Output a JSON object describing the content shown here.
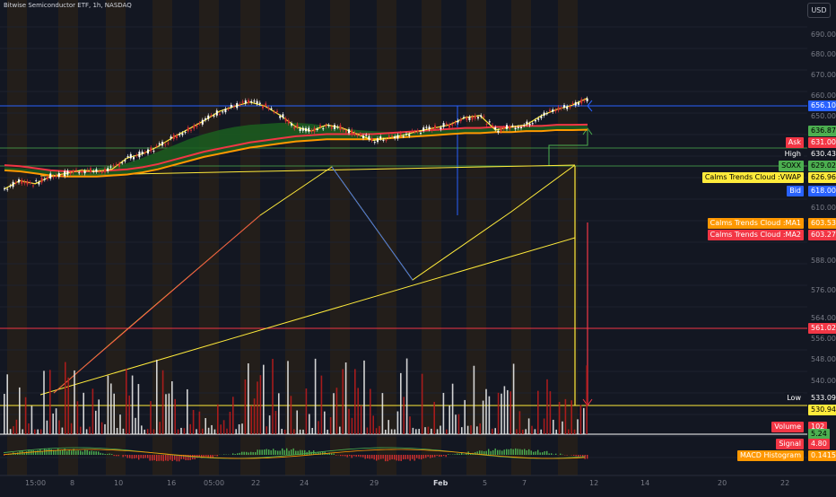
{
  "header": {
    "title": "Bitwise Semiconductor ETF, 1h, NASDAQ",
    "currency_button": "USD"
  },
  "price_axis": {
    "ticks": [
      "690.00",
      "680.00",
      "670.00",
      "660.00",
      "650.00",
      "610.00",
      "588.00",
      "576.00",
      "564.00",
      "556.00",
      "548.00",
      "540.00"
    ]
  },
  "time_axis": {
    "labels": [
      "15:00",
      "8",
      "10",
      "16",
      "05:00",
      "22",
      "24",
      "29",
      "Feb",
      "5",
      "7",
      "12",
      "14",
      "20",
      "22"
    ]
  },
  "price_tags": {
    "level_656": {
      "value": "656.10",
      "color": "#2962ff"
    },
    "level_636": {
      "value": "636.87",
      "color": "#4caf50"
    },
    "ask": {
      "label": "Ask",
      "value": "631.00",
      "color": "#f23645"
    },
    "high": {
      "label": "High",
      "value": "630.43"
    },
    "last": {
      "label": "SOXX",
      "value": "629.02",
      "color": "#4caf50"
    },
    "vwap": {
      "label": "Calms Trends Cloud :VWAP",
      "value": "626.96",
      "color": "#ffeb3b"
    },
    "bid": {
      "label": "Bid",
      "value": "618.00",
      "color": "#2962ff"
    },
    "ma1": {
      "label": "Calms Trends Cloud :MA1",
      "value": "603.53",
      "color": "#ff9800"
    },
    "ma2": {
      "label": "Calms Trends Cloud :MA2",
      "value": "603.27",
      "color": "#f23645"
    },
    "level_561": {
      "value": "561.02",
      "color": "#f23645"
    },
    "low": {
      "label": "Low",
      "value": "533.09"
    },
    "level_530": {
      "value": "530.94",
      "color": "#ffeb3b"
    },
    "volume": {
      "label": "Volume",
      "value": "102",
      "color": "#f23645"
    },
    "macd_hidden": {
      "value": "5.24",
      "color": "#4caf50"
    },
    "signal": {
      "label": "Signal",
      "value": "4.80",
      "color": "#f23645"
    },
    "macd_hist": {
      "label": "MACD Histogram",
      "value": "0.1415",
      "color": "#ff9800"
    }
  },
  "chart_data": {
    "type": "line",
    "series": [
      {
        "name": "SOXX",
        "values": [
          541,
          549,
          546,
          553,
          556,
          559,
          558,
          560,
          571,
          575,
          582,
          591,
          599,
          607,
          616,
          621,
          625,
          621,
          612,
          601,
          597,
          603,
          600,
          594,
          588,
          590,
          593,
          597,
          600,
          603,
          610,
          612,
          598,
          601,
          603,
          612,
          618,
          622,
          629
        ]
      },
      {
        "name": "Calms Trends Cloud :MA1",
        "values": [
          562,
          561,
          560,
          559,
          559,
          560,
          561,
          563,
          566,
          571,
          577,
          583,
          589,
          594,
          598,
          601,
          603,
          604,
          605,
          605,
          604,
          602,
          600,
          598,
          597,
          596,
          596,
          597,
          598,
          599,
          600,
          601,
          601,
          602,
          602,
          603,
          603,
          603,
          603.53
        ]
      },
      {
        "name": "Calms Trends Cloud :MA2",
        "values": [
          564,
          563,
          561,
          559,
          558,
          558,
          558,
          559,
          560,
          562,
          565,
          569,
          573,
          577,
          580,
          583,
          586,
          588,
          590,
          592,
          593,
          594,
          594,
          594,
          594,
          595,
          596,
          597,
          598,
          599,
          600,
          600,
          601,
          601,
          602,
          602,
          603,
          603,
          603.27
        ]
      }
    ],
    "ylim": [
      528,
      696
    ]
  }
}
